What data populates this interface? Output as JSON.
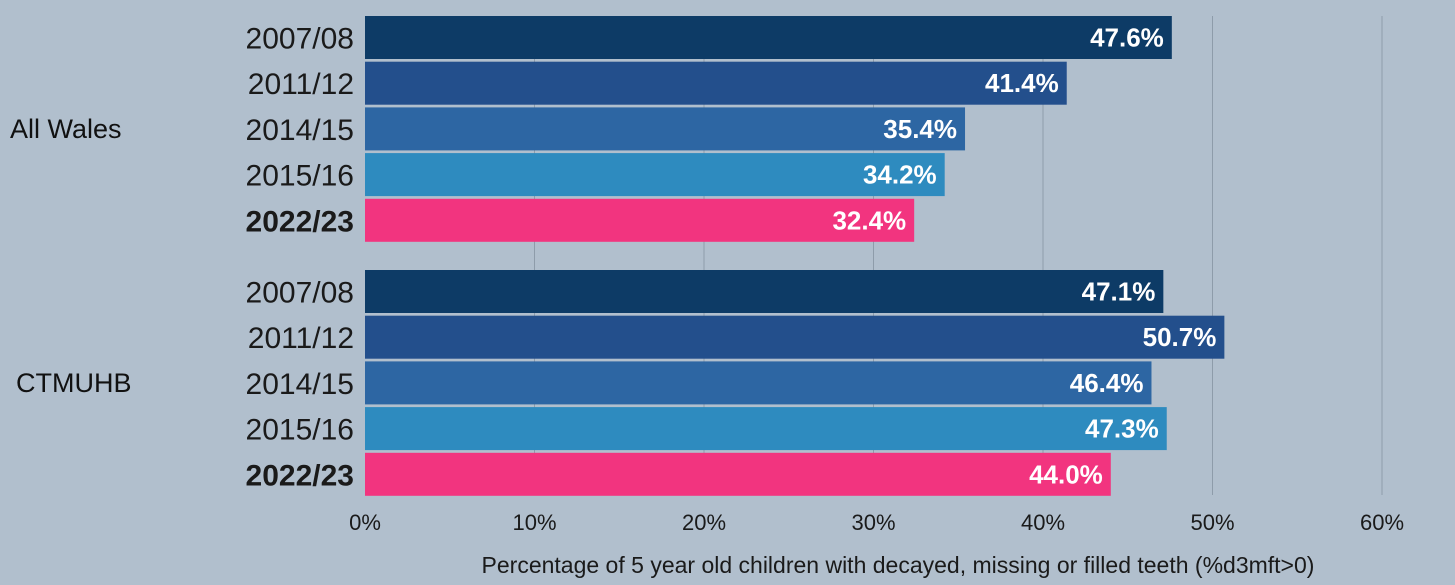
{
  "chart_data": {
    "type": "bar",
    "orientation": "horizontal",
    "title": "",
    "xlabel": "Percentage of 5 year old children with decayed, missing or filled teeth (%d3mft>0)",
    "ylabel": "",
    "xlim": [
      0,
      60
    ],
    "xticks": [
      {
        "value": 0,
        "label": "0%"
      },
      {
        "value": 10,
        "label": "10%"
      },
      {
        "value": 20,
        "label": "20%"
      },
      {
        "value": 30,
        "label": "30%"
      },
      {
        "value": 40,
        "label": "40%"
      },
      {
        "value": 50,
        "label": "50%"
      },
      {
        "value": 60,
        "label": "60%"
      }
    ],
    "grid": true,
    "legend": "none",
    "colors": {
      "2007/08": "#0d3b66",
      "2011/12": "#234f8c",
      "2014/15": "#2d66a3",
      "2015/16": "#2e8bbf",
      "2022/23": "#f2347f"
    },
    "groups": [
      {
        "name": "All Wales",
        "bars": [
          {
            "year": "2007/08",
            "value": 47.6,
            "label": "47.6%",
            "bold": false
          },
          {
            "year": "2011/12",
            "value": 41.4,
            "label": "41.4%",
            "bold": false
          },
          {
            "year": "2014/15",
            "value": 35.4,
            "label": "35.4%",
            "bold": false
          },
          {
            "year": "2015/16",
            "value": 34.2,
            "label": "34.2%",
            "bold": false
          },
          {
            "year": "2022/23",
            "value": 32.4,
            "label": "32.4%",
            "bold": true
          }
        ]
      },
      {
        "name": "CTMUHB",
        "bars": [
          {
            "year": "2007/08",
            "value": 47.1,
            "label": "47.1%",
            "bold": false
          },
          {
            "year": "2011/12",
            "value": 50.7,
            "label": "50.7%",
            "bold": false
          },
          {
            "year": "2014/15",
            "value": 46.4,
            "label": "46.4%",
            "bold": false
          },
          {
            "year": "2015/16",
            "value": 47.3,
            "label": "47.3%",
            "bold": false
          },
          {
            "year": "2022/23",
            "value": 44.0,
            "label": "44.0%",
            "bold": true
          }
        ]
      }
    ]
  }
}
